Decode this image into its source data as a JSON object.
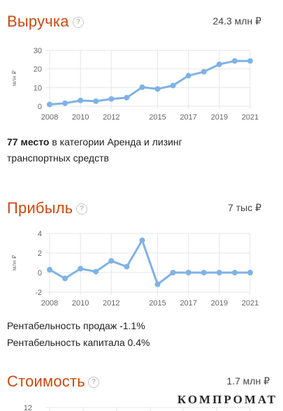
{
  "revenue": {
    "title": "Выручка",
    "help_icon": "?",
    "value": "24.3 млн ₽",
    "unit_label": "млн ₽",
    "rank_strong": "77 место",
    "rank_text": " в категории Аренда и лизинг транспортных средств"
  },
  "profit": {
    "title": "Прибыль",
    "help_icon": "?",
    "value": "7 тыс ₽",
    "unit_label": "млн ₽",
    "sales_margin": "Рентабельность продаж -1.1%",
    "capital_margin": "Рентабельность капитала 0.4%"
  },
  "cost": {
    "title": "Стоимость",
    "help_icon": "?",
    "value": "1.7 млн ₽"
  },
  "watermark": "КОМПРОМАТ",
  "colors": {
    "title": "#c94a12",
    "line": "#7fb2e5",
    "grid": "#e6e6e6"
  },
  "chart_data": [
    {
      "type": "line",
      "x": [
        2008,
        2009,
        2010,
        2011,
        2012,
        2013,
        2014,
        2015,
        2016,
        2017,
        2018,
        2019,
        2020,
        2021
      ],
      "values": [
        1.0,
        1.6,
        3.1,
        2.7,
        3.9,
        4.6,
        10.2,
        9.3,
        11.1,
        16.4,
        18.5,
        22.5,
        24.3,
        24.3
      ],
      "xticks": [
        "2008",
        "2010",
        "2012",
        "2015",
        "2017",
        "2019",
        "2021"
      ],
      "yticks": [
        "0",
        "10",
        "20",
        "30"
      ],
      "ylim": [
        0,
        30
      ],
      "ylabel": "млн ₽",
      "grid": true
    },
    {
      "type": "line",
      "x": [
        2008,
        2009,
        2010,
        2011,
        2012,
        2013,
        2014,
        2015,
        2016,
        2017,
        2018,
        2019,
        2020,
        2021
      ],
      "values": [
        0.3,
        -0.6,
        0.4,
        0.1,
        1.2,
        0.6,
        3.3,
        -1.2,
        0.0,
        0.0,
        0.0,
        0.0,
        0.0,
        0.0
      ],
      "xticks": [
        "2008",
        "2010",
        "2012",
        "2015",
        "2017",
        "2019",
        "2021"
      ],
      "yticks": [
        "-2",
        "0",
        "2",
        "4"
      ],
      "ylim": [
        -2,
        4
      ],
      "ylabel": "млн ₽",
      "grid": true
    },
    {
      "type": "line",
      "yticks": [
        "12"
      ],
      "ylabel": "",
      "grid": true
    }
  ]
}
